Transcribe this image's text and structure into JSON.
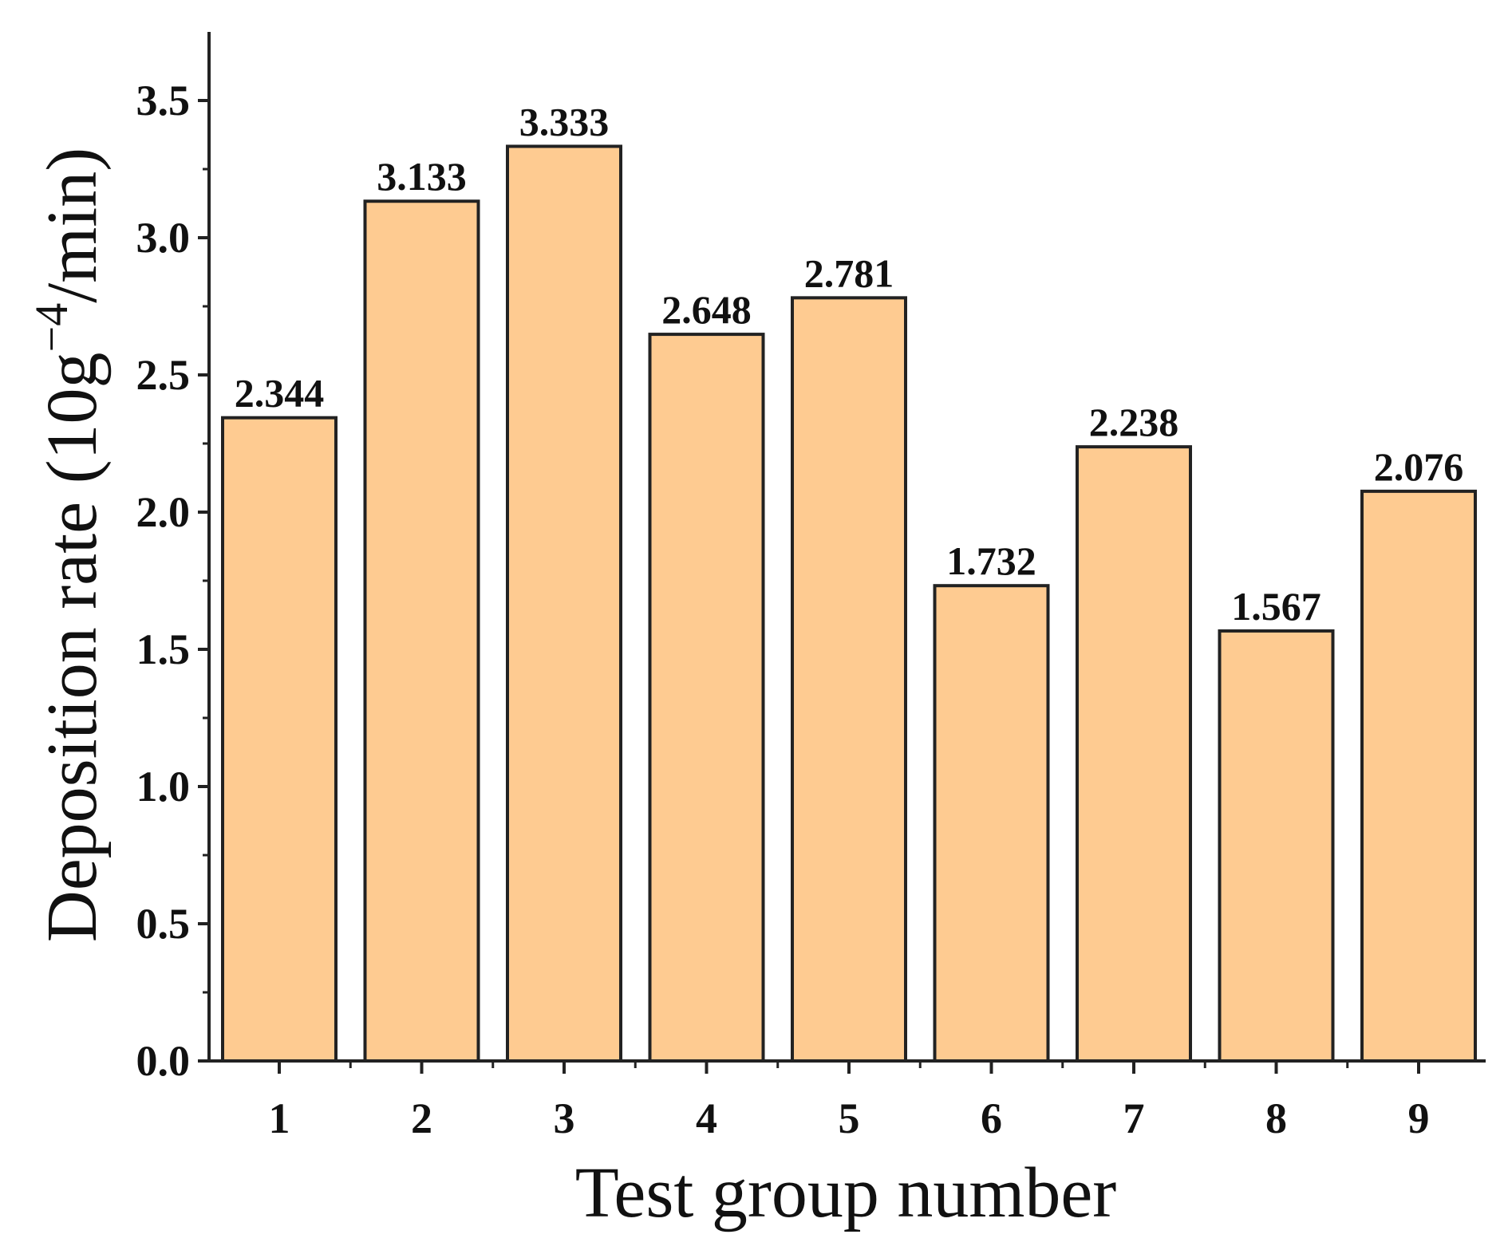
{
  "chart_data": {
    "type": "bar",
    "categories": [
      "1",
      "2",
      "3",
      "4",
      "5",
      "6",
      "7",
      "8",
      "9"
    ],
    "values": [
      2.344,
      3.133,
      3.333,
      2.648,
      2.781,
      1.732,
      2.238,
      1.567,
      2.076
    ],
    "data_labels": [
      "2.344",
      "3.133",
      "3.333",
      "2.648",
      "2.781",
      "1.732",
      "2.238",
      "1.567",
      "2.076"
    ],
    "title": "",
    "xlabel": "Test group number",
    "ylabel_parts": {
      "pre": "Deposition rate (10g",
      "sup": "−4",
      "post": "/min)"
    },
    "ylim": [
      0,
      3.75
    ],
    "yticks": [
      0.0,
      0.5,
      1.0,
      1.5,
      2.0,
      2.5,
      3.0,
      3.5
    ],
    "ytick_labels": [
      "0.0",
      "0.5",
      "1.0",
      "1.5",
      "2.0",
      "2.5",
      "3.0",
      "3.5"
    ],
    "grid": false,
    "legend": "none",
    "bar_color": "#FECB91",
    "edge_color": "#222222"
  }
}
